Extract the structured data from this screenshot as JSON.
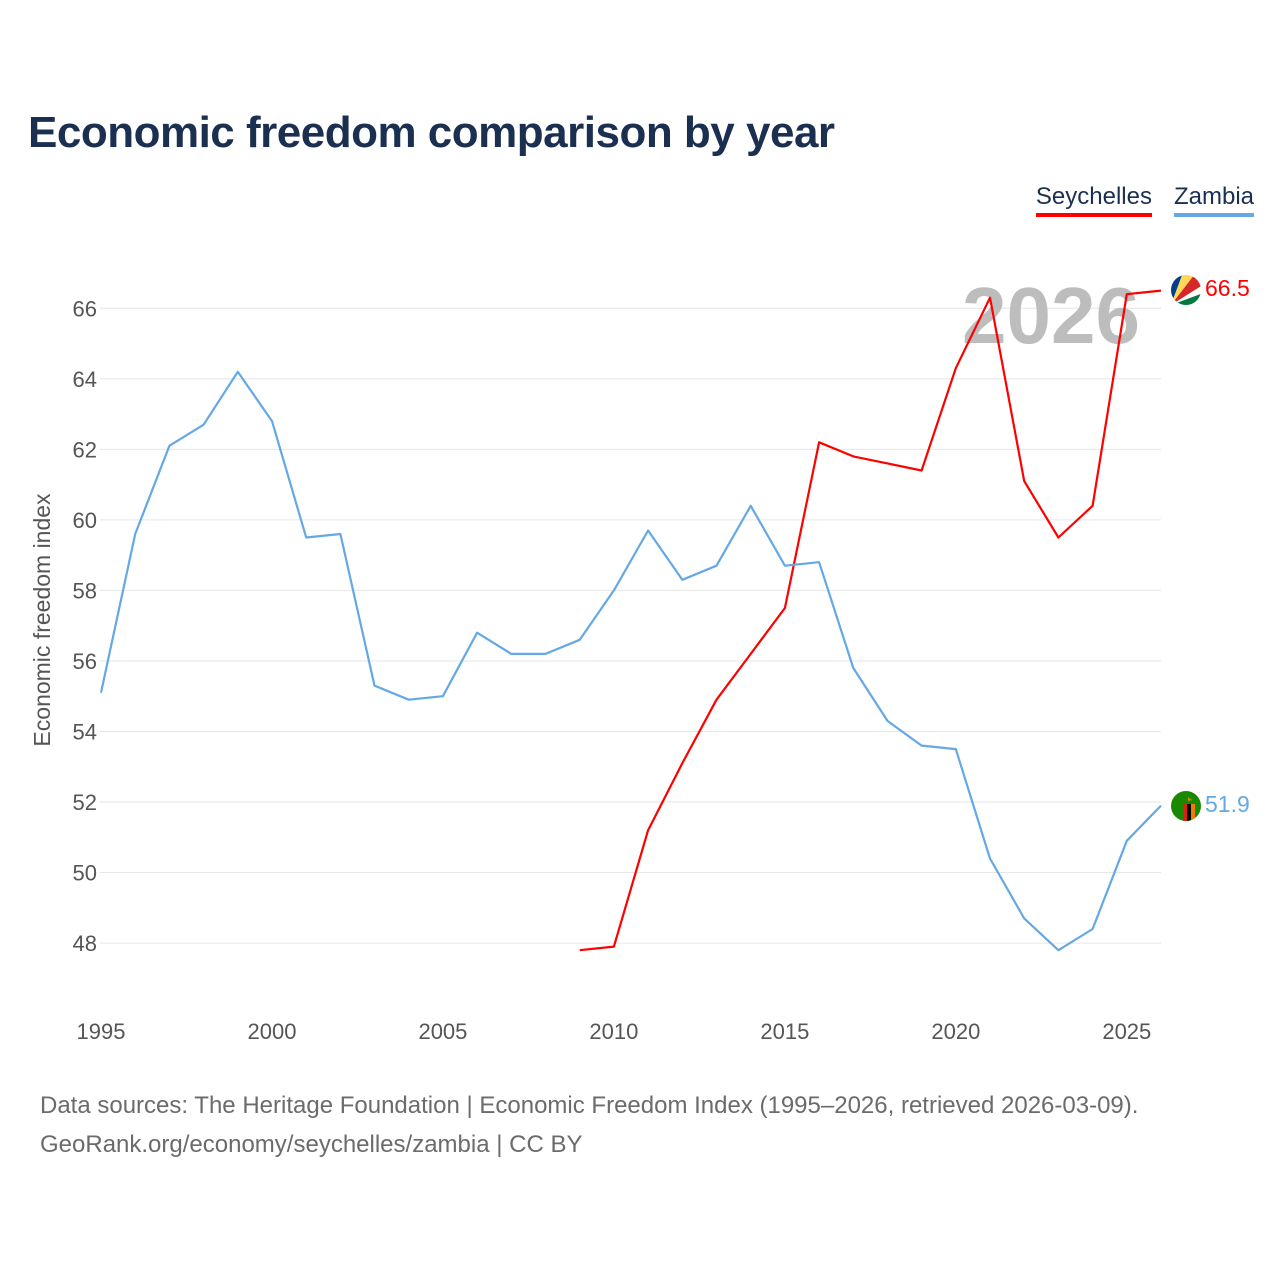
{
  "title": "Economic freedom comparison by year",
  "legend": [
    {
      "label": "Seychelles",
      "color": "#ff0000"
    },
    {
      "label": "Zambia",
      "color": "#64a8e5"
    }
  ],
  "year_label": "2026",
  "source": {
    "line1": "Data sources: The Heritage Foundation | Economic Freedom Index (1995–2026, retrieved 2026-03-09).",
    "line2": "GeoRank.org/economy/seychelles/zambia | CC BY"
  },
  "chart_data": {
    "type": "line",
    "title": "Economic freedom comparison by year",
    "xlabel": "",
    "ylabel": "Economic freedom index",
    "xlim": [
      1995,
      2026
    ],
    "ylim": [
      46.5,
      67
    ],
    "x_ticks": [
      1995,
      2000,
      2005,
      2010,
      2015,
      2020,
      2025
    ],
    "y_ticks": [
      48,
      50,
      52,
      54,
      56,
      58,
      60,
      62,
      64,
      66
    ],
    "grid": true,
    "legend_position": "top-right",
    "series": [
      {
        "name": "Seychelles",
        "color": "#ff0000",
        "end_label": "66.5",
        "x": [
          2009,
          2010,
          2011,
          2012,
          2013,
          2014,
          2015,
          2016,
          2017,
          2018,
          2019,
          2020,
          2021,
          2022,
          2023,
          2024,
          2025,
          2026
        ],
        "values": [
          47.8,
          47.9,
          51.2,
          53.1,
          54.9,
          56.2,
          57.5,
          62.2,
          61.8,
          61.6,
          61.4,
          64.3,
          66.3,
          61.1,
          59.5,
          60.4,
          66.4,
          66.5
        ]
      },
      {
        "name": "Zambia",
        "color": "#64a8e5",
        "end_label": "51.9",
        "x": [
          1995,
          1996,
          1997,
          1998,
          1999,
          2000,
          2001,
          2002,
          2003,
          2004,
          2005,
          2006,
          2007,
          2008,
          2009,
          2010,
          2011,
          2012,
          2013,
          2014,
          2015,
          2016,
          2017,
          2018,
          2019,
          2020,
          2021,
          2022,
          2023,
          2024,
          2025,
          2026
        ],
        "values": [
          55.1,
          59.6,
          62.1,
          62.7,
          64.2,
          62.8,
          59.5,
          59.6,
          55.3,
          54.9,
          55.0,
          56.8,
          56.2,
          56.2,
          56.6,
          58.0,
          59.7,
          58.3,
          58.7,
          60.4,
          58.7,
          58.8,
          55.8,
          54.3,
          53.6,
          53.5,
          50.4,
          48.7,
          47.8,
          48.4,
          50.9,
          51.9
        ]
      }
    ]
  }
}
